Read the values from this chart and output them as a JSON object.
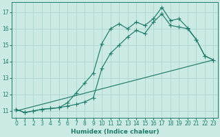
{
  "xlabel": "Humidex (Indice chaleur)",
  "bg_color": "#cceae4",
  "grid_color": "#b0d8d0",
  "line_color": "#1e7a6a",
  "xlim": [
    -0.5,
    23.5
  ],
  "ylim": [
    10.6,
    17.6
  ],
  "xticks": [
    0,
    1,
    2,
    3,
    4,
    5,
    6,
    7,
    8,
    9,
    10,
    11,
    12,
    13,
    14,
    15,
    16,
    17,
    18,
    19,
    20,
    21,
    22,
    23
  ],
  "yticks": [
    11,
    12,
    13,
    14,
    15,
    16,
    17
  ],
  "line1_x": [
    0,
    1,
    2,
    3,
    4,
    5,
    6,
    7,
    8,
    9,
    10,
    11,
    12,
    13,
    14,
    15,
    16,
    17,
    18,
    19,
    20,
    21,
    22,
    23
  ],
  "line1_y": [
    11.1,
    10.9,
    11.0,
    11.1,
    11.15,
    11.2,
    11.5,
    12.1,
    12.7,
    13.3,
    15.1,
    16.0,
    16.3,
    16.0,
    16.4,
    16.2,
    16.6,
    17.3,
    16.5,
    16.6,
    16.05,
    15.35,
    14.35,
    14.1
  ],
  "line2_x": [
    0,
    1,
    2,
    3,
    4,
    5,
    6,
    7,
    8,
    9,
    10,
    11,
    12,
    13,
    14,
    15,
    16,
    17,
    18,
    19,
    20,
    21,
    22,
    23
  ],
  "line2_y": [
    11.1,
    10.9,
    11.0,
    11.1,
    11.15,
    11.2,
    11.3,
    11.4,
    11.55,
    11.8,
    13.6,
    14.5,
    15.0,
    15.5,
    15.9,
    15.7,
    16.4,
    16.9,
    16.2,
    16.1,
    16.0,
    15.35,
    14.35,
    14.1
  ],
  "line3_x": [
    0,
    23
  ],
  "line3_y": [
    11.0,
    14.1
  ]
}
